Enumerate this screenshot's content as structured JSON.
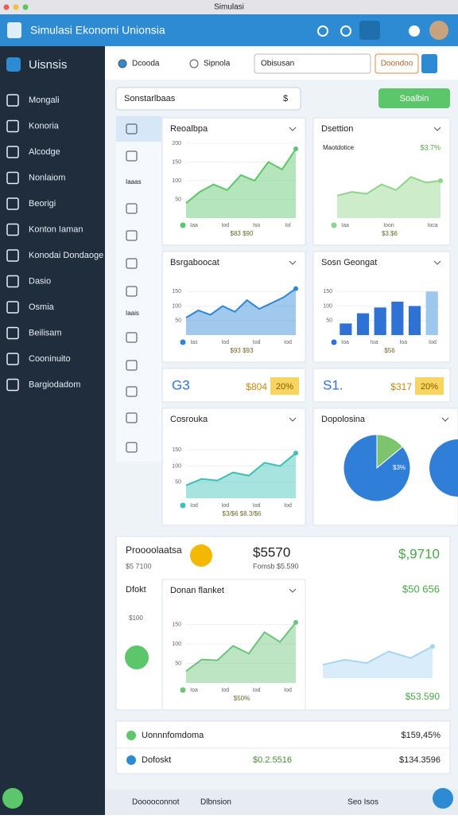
{
  "window": {
    "title": "Simulasi"
  },
  "header": {
    "title": "Simulasi Ekonomi Unionsia"
  },
  "sidebar": {
    "brand": "Uisnsis",
    "items": [
      "Mongali",
      "Konoria",
      "Alcodge",
      "Nonlaiom",
      "Beorigi",
      "Konton Iaman",
      "Konodai Dondaoge",
      "Dasio",
      "Osmia",
      "Beilisam",
      "Cooninuito",
      "Bargiodadom"
    ]
  },
  "toolbar": {
    "tabs": [
      "Dcooda",
      "Sipnola"
    ],
    "search": "Obisusan",
    "button": "Doondoo"
  },
  "filter": {
    "select": "Sonstarlbaas",
    "select_suffix": "$",
    "action": "Soalbin"
  },
  "rail": {
    "labels": [
      "Iaaas",
      "Iaais"
    ]
  },
  "charts": [
    {
      "type": "area",
      "title": "Reoalbpa",
      "color": "#5cc66a",
      "values": [
        40,
        70,
        90,
        75,
        115,
        100,
        150,
        130,
        185
      ],
      "ylim": [
        0,
        200
      ],
      "yticks": [
        50,
        100,
        150,
        200
      ],
      "x_labels": [
        "Iaa",
        "Iod",
        "Iso",
        "Iol"
      ],
      "footer": "$83 $90"
    },
    {
      "type": "area",
      "title": "Dsettion",
      "subtitle": "Maotdotice",
      "badge": "$3.7%",
      "color": "#8fd48a",
      "values": [
        60,
        70,
        65,
        90,
        75,
        110,
        95,
        100
      ],
      "ylim": [
        0,
        200
      ],
      "yticks": [],
      "x_labels": [
        "Iaa",
        "Ioon",
        "Ioca"
      ],
      "footer": "$3.$6"
    },
    {
      "type": "area",
      "title": "Bsrgaboocat",
      "color": "#2f86d6",
      "values": [
        60,
        85,
        70,
        100,
        80,
        120,
        90,
        110,
        130,
        160
      ],
      "ylim": [
        0,
        200
      ],
      "yticks": [
        50,
        100,
        150
      ],
      "x_labels": [
        "Ias",
        "Iod",
        "Iod",
        "Iod"
      ],
      "footer": "$93 $93"
    },
    {
      "type": "bar",
      "title": "Sosn Geongat",
      "color": "#2f72d6",
      "values": [
        40,
        75,
        95,
        115,
        100,
        150
      ],
      "ylim": [
        0,
        200
      ],
      "yticks": [
        50,
        100,
        150
      ],
      "x_labels": [
        "Ioa",
        "Ioa",
        "Ioa",
        "Iod"
      ],
      "footer": "$56"
    },
    {
      "type": "area",
      "title": "Cosrouka",
      "color": "#3cc0b8",
      "values": [
        40,
        60,
        55,
        80,
        70,
        110,
        100,
        140
      ],
      "ylim": [
        0,
        200
      ],
      "yticks": [
        50,
        100,
        150
      ],
      "x_labels": [
        "Iod",
        "Iod",
        "Iod",
        "Iod"
      ],
      "footer": "$3/$6 $8.3/$6"
    },
    {
      "type": "pie",
      "title": "Dopolosina",
      "values": [
        14,
        86
      ],
      "colors": [
        "#7cc56e",
        "#2f7fd9"
      ],
      "label": "$3%"
    },
    {
      "type": "area",
      "title": "Donan flanket",
      "color": "#6cc47a",
      "values": [
        30,
        60,
        58,
        95,
        75,
        130,
        105,
        155
      ],
      "ylim": [
        0,
        200
      ],
      "yticks": [
        50,
        100,
        150
      ],
      "x_labels": [
        "Ioa",
        "Iod",
        "Iod",
        "Iod"
      ],
      "footer": "$50%"
    },
    {
      "type": "area",
      "color": "#a8d4f2",
      "values": [
        40,
        55,
        45,
        80,
        60,
        95
      ],
      "ylim": [
        0,
        200
      ],
      "yticks": []
    }
  ],
  "kpis": [
    {
      "left": "G3",
      "value": "$804",
      "badge": "20%"
    },
    {
      "left": "S1.",
      "value": "$317",
      "badge": "20%"
    }
  ],
  "summary": {
    "title": "Proooolaatsa",
    "sub": "$5 7100",
    "value": "$5570",
    "value_sub": "Fomsb $5.590",
    "right": "$,9710",
    "left2": "Dfokt",
    "left2_value": "$100",
    "right2": "$50 656",
    "footer": "$53.590"
  },
  "list": [
    {
      "label": "Uonnnfomdoma",
      "value": "$159,45%"
    },
    {
      "label": "Dofoskt",
      "mid": "$0.2.5516",
      "value": "$134.3596"
    }
  ],
  "bottom": [
    "Dooooconnot",
    "Dlbnsion",
    "Seo Isos"
  ]
}
